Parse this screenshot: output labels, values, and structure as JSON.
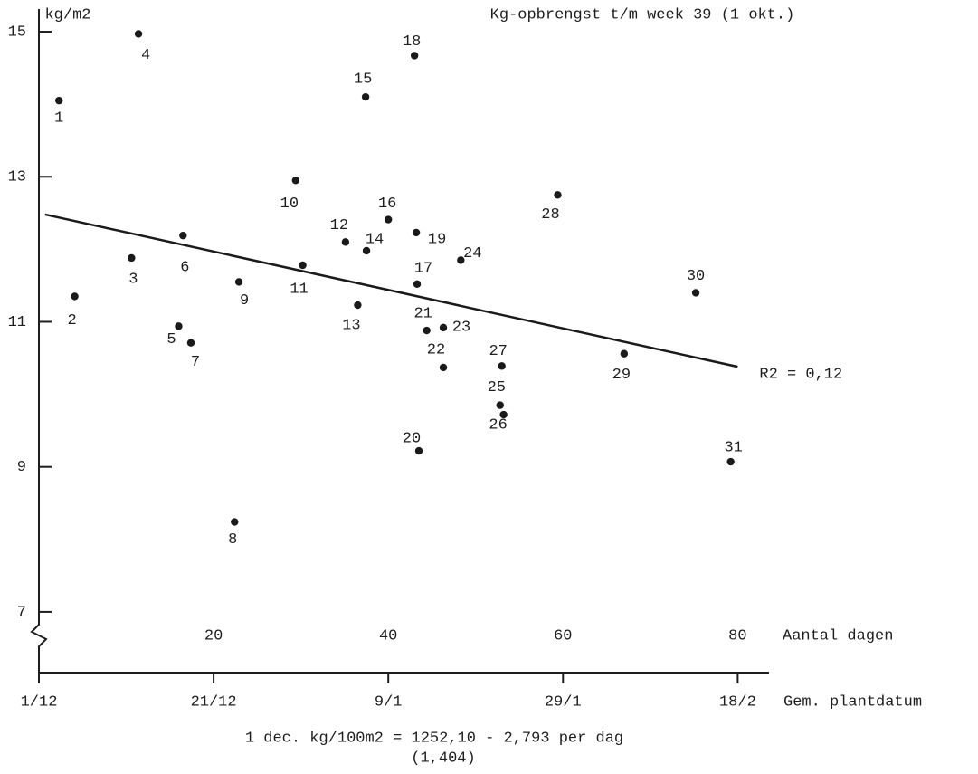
{
  "chart_data": {
    "type": "scatter",
    "title": "Kg-opbrengst t/m week 39 (1 okt.)",
    "y_label": "kg/m2",
    "x_label": "Aantal dagen",
    "x2_label": "Gem. plantdatum",
    "footnote": [
      "1 dec. kg/100m2 = 1252,10 - 2,793 per dag",
      "(1,404)"
    ],
    "x": [
      2.3,
      4.1,
      10.6,
      11.4,
      16.0,
      16.5,
      17.4,
      22.4,
      22.9,
      29.4,
      30.2,
      35.1,
      36.5,
      37.5,
      37.4,
      40.0,
      43.3,
      43.0,
      43.2,
      43.5,
      44.4,
      46.3,
      46.3,
      48.3,
      52.8,
      53.2,
      53.0,
      59.4,
      67.0,
      75.2,
      79.2
    ],
    "values": [
      14.05,
      11.35,
      11.88,
      14.97,
      10.94,
      12.19,
      10.71,
      8.24,
      11.55,
      12.95,
      11.78,
      12.1,
      11.23,
      11.98,
      14.1,
      12.41,
      11.52,
      14.67,
      12.23,
      9.22,
      10.88,
      10.37,
      10.92,
      11.85,
      9.85,
      9.72,
      10.39,
      12.75,
      10.56,
      11.4,
      9.07
    ],
    "point_labels": [
      "1",
      "2",
      "3",
      "4",
      "5",
      "6",
      "7",
      "8",
      "9",
      "10",
      "11",
      "12",
      "13",
      "14",
      "15",
      "16",
      "17",
      "18",
      "19",
      "20",
      "21",
      "22",
      "23",
      "24",
      "25",
      "26",
      "27",
      "28",
      "29",
      "30",
      "31"
    ],
    "color": "#1a1a1a",
    "trendline": {
      "x": [
        0.7,
        80
      ],
      "y": [
        12.48,
        10.38
      ],
      "label": "R2 = 0,12"
    },
    "xlim": [
      0,
      84
    ],
    "ylim": [
      6.2,
      15.4
    ],
    "xticks": [
      20,
      40,
      60,
      80
    ],
    "x2ticks": [
      {
        "value": 0,
        "label": "1/12"
      },
      {
        "value": 20,
        "label": "21/12"
      },
      {
        "value": 40,
        "label": "9/1"
      },
      {
        "value": 60,
        "label": "29/1"
      },
      {
        "value": 80,
        "label": "18/2"
      }
    ],
    "yticks": [
      7,
      9,
      11,
      13,
      15
    ],
    "grid": false
  }
}
